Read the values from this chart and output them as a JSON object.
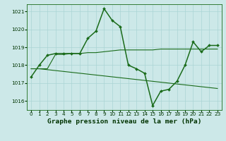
{
  "line1_x": [
    0,
    1,
    2,
    3,
    4,
    5,
    6,
    7,
    8,
    9,
    10,
    11,
    12,
    13,
    14,
    15,
    16,
    17,
    18,
    19,
    20,
    21,
    22,
    23
  ],
  "line1_y": [
    1017.35,
    1018.0,
    1018.55,
    1018.65,
    1018.65,
    1018.65,
    1018.65,
    1019.5,
    1019.9,
    1021.15,
    1020.5,
    1020.15,
    1018.0,
    1017.8,
    1017.55,
    1015.75,
    1016.55,
    1016.65,
    1017.1,
    1018.0,
    1019.3,
    1018.75,
    1019.1,
    1019.1
  ],
  "line2_x": [
    0,
    1,
    2,
    3,
    4,
    5,
    6,
    7,
    8,
    9,
    10,
    11,
    12,
    13,
    14,
    15,
    16,
    17,
    18,
    19,
    20,
    21,
    22,
    23
  ],
  "line2_y": [
    1017.8,
    1017.8,
    1017.8,
    1018.6,
    1018.6,
    1018.65,
    1018.65,
    1018.7,
    1018.7,
    1018.75,
    1018.8,
    1018.85,
    1018.85,
    1018.85,
    1018.85,
    1018.85,
    1018.9,
    1018.9,
    1018.9,
    1018.9,
    1018.9,
    1018.9,
    1018.9,
    1018.9
  ],
  "line3_x": [
    0,
    1,
    2,
    3,
    4,
    5,
    6,
    7,
    8,
    9,
    10,
    11,
    12,
    13,
    14,
    15,
    16,
    17,
    18,
    19,
    20,
    21,
    22,
    23
  ],
  "line3_y": [
    1017.8,
    1017.8,
    1017.75,
    1017.7,
    1017.65,
    1017.6,
    1017.55,
    1017.5,
    1017.45,
    1017.4,
    1017.35,
    1017.3,
    1017.25,
    1017.2,
    1017.15,
    1017.1,
    1017.05,
    1017.0,
    1016.95,
    1016.9,
    1016.85,
    1016.8,
    1016.75,
    1016.7
  ],
  "line1_color": "#1a6b1a",
  "line2_color": "#1a6b1a",
  "line3_color": "#1a6b1a",
  "background_color": "#cce8e8",
  "grid_color": "#aad4d4",
  "axis_color": "#1a6b1a",
  "text_color": "#003300",
  "title": "Graphe pression niveau de la mer (hPa)",
  "xlim": [
    -0.5,
    23.5
  ],
  "ylim": [
    1015.5,
    1021.4
  ],
  "yticks": [
    1016,
    1017,
    1018,
    1019,
    1020,
    1021
  ],
  "xticks": [
    0,
    1,
    2,
    3,
    4,
    5,
    6,
    7,
    8,
    9,
    10,
    11,
    12,
    13,
    14,
    15,
    16,
    17,
    18,
    19,
    20,
    21,
    22,
    23
  ],
  "title_fontsize": 6.8,
  "tick_fontsize": 5.2
}
